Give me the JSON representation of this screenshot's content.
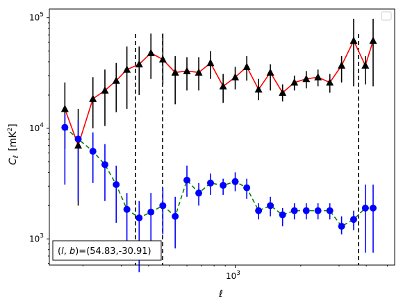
{
  "chart_data": {
    "type": "scatter",
    "xscale": "log",
    "yscale": "log",
    "xlim": [
      140,
      5400
    ],
    "ylim": [
      580,
      120000
    ],
    "xticks": [
      {
        "value": 1000,
        "label": "10",
        "exp": "3"
      }
    ],
    "yticks": [
      {
        "value": 1000,
        "label": "10",
        "exp": "3"
      },
      {
        "value": 10000,
        "label": "10",
        "exp": "4"
      },
      {
        "value": 100000,
        "label": "10",
        "exp": "5"
      }
    ],
    "xlabel": "ℓ",
    "ylabel": {
      "main": "C",
      "sub": "ℓ",
      "units": "[mK",
      "sup": "2",
      "close": "]"
    },
    "grid": false,
    "legend": {
      "placement": "top-right",
      "entries": []
    },
    "vlines": [
      348,
      464,
      3680
    ],
    "series": [
      {
        "marker": "triangle",
        "color": "#000000",
        "line_color": "#ff0000",
        "line_style": "solid",
        "errbar_color": "#000000",
        "x": [
          165,
          190,
          222,
          252,
          284,
          318,
          362,
          410,
          465,
          530,
          600,
          680,
          770,
          880,
          1000,
          1130,
          1280,
          1450,
          1650,
          1870,
          2120,
          2400,
          2720,
          3080,
          3500,
          3960,
          4300
        ],
        "y": [
          15000,
          7000,
          18500,
          22000,
          27000,
          34000,
          38000,
          48000,
          42000,
          32000,
          33000,
          32000,
          39000,
          24000,
          29000,
          36000,
          22500,
          32000,
          21000,
          26000,
          28000,
          29000,
          26000,
          37000,
          62000,
          37000,
          62000
        ],
        "yerr_low": [
          6500,
          2000,
          10000,
          10500,
          14000,
          15000,
          20000,
          28000,
          25000,
          16500,
          22000,
          22000,
          28000,
          17000,
          22500,
          27000,
          18000,
          22000,
          17500,
          22000,
          23000,
          24000,
          21000,
          26000,
          24000,
          25000,
          24000
        ],
        "yerr_high": [
          26000,
          15000,
          29000,
          34000,
          39000,
          55000,
          55000,
          72000,
          72000,
          45000,
          44000,
          44000,
          50000,
          31000,
          36000,
          45000,
          28000,
          38000,
          25000,
          30000,
          33000,
          34000,
          31000,
          45000,
          98000,
          45000,
          98000
        ]
      },
      {
        "marker": "circle",
        "color": "#0000ff",
        "line_color": "#008000",
        "line_style": "dashed",
        "errbar_color": "#0000ff",
        "x": [
          165,
          190,
          222,
          252,
          284,
          318,
          362,
          410,
          465,
          530,
          600,
          680,
          770,
          880,
          1000,
          1130,
          1280,
          1450,
          1650,
          1870,
          2120,
          2400,
          2720,
          3080,
          3500,
          3960,
          4300
        ],
        "y": [
          10200,
          8000,
          6200,
          4700,
          3100,
          1850,
          1550,
          1750,
          2000,
          1600,
          3400,
          2600,
          3200,
          3050,
          3300,
          2900,
          1800,
          2000,
          1650,
          1800,
          1800,
          1800,
          1800,
          1300,
          1500,
          1900,
          1900
        ],
        "yerr_low": [
          3100,
          2200,
          3200,
          2200,
          1400,
          700,
          500,
          700,
          1100,
          820,
          2400,
          2000,
          2500,
          2500,
          2700,
          2300,
          1500,
          1600,
          1300,
          1500,
          1500,
          1500,
          1500,
          1100,
          1200,
          750,
          750
        ],
        "yerr_high": [
          13500,
          12000,
          9200,
          7200,
          4600,
          2600,
          2200,
          2600,
          2900,
          2400,
          4600,
          3200,
          3900,
          3500,
          4000,
          3500,
          2100,
          2400,
          1900,
          2100,
          2100,
          2100,
          2100,
          1600,
          1800,
          3100,
          3100
        ]
      }
    ],
    "annotation": {
      "prefix": "(",
      "l": "l",
      "comma": ", ",
      "b": "b",
      "suffix": ")=(54.83,-30.91)"
    }
  }
}
